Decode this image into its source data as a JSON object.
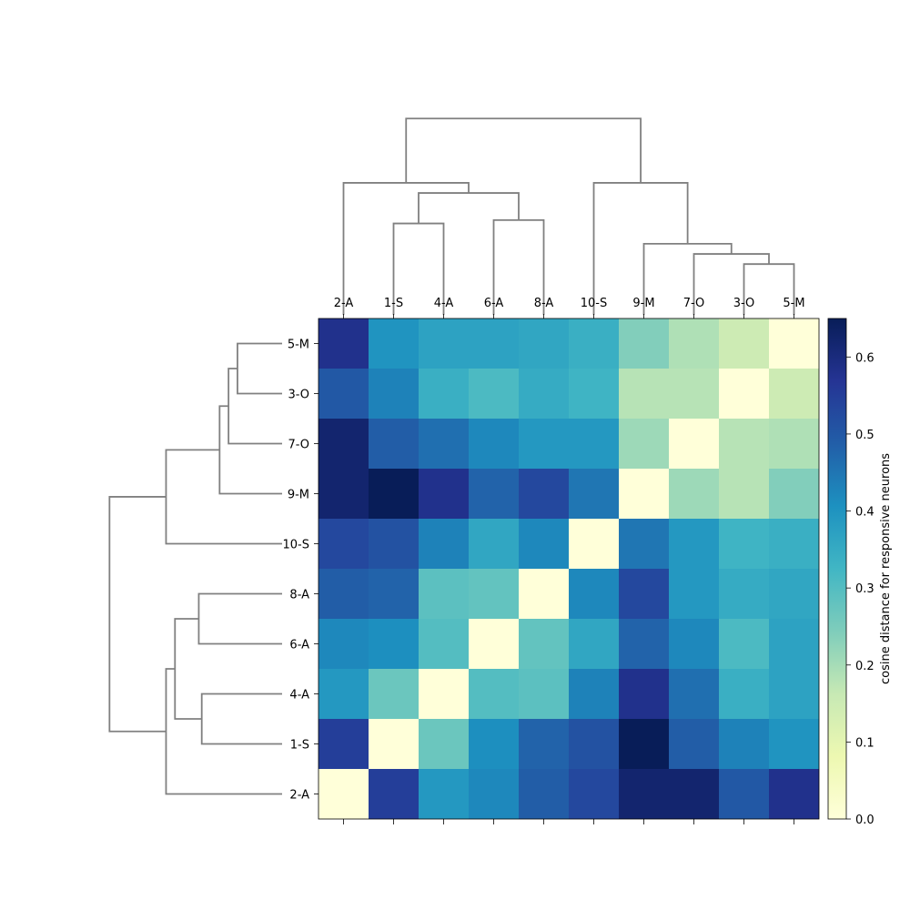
{
  "chart_data": {
    "type": "heatmap",
    "subtype": "clustermap",
    "title": "",
    "labels": [
      "2-A",
      "1-S",
      "4-A",
      "6-A",
      "8-A",
      "10-S",
      "9-M",
      "7-O",
      "3-O",
      "5-M"
    ],
    "column_order": [
      "2-A",
      "1-S",
      "4-A",
      "6-A",
      "8-A",
      "10-S",
      "9-M",
      "7-O",
      "3-O",
      "5-M"
    ],
    "row_order_top_to_bottom": [
      "5-M",
      "3-O",
      "7-O",
      "9-M",
      "10-S",
      "8-A",
      "6-A",
      "4-A",
      "1-S",
      "2-A"
    ],
    "matrix_label_order": [
      "2-A",
      "1-S",
      "4-A",
      "6-A",
      "8-A",
      "10-S",
      "9-M",
      "7-O",
      "3-O",
      "5-M"
    ],
    "matrix": [
      [
        0.0,
        0.55,
        0.39,
        0.42,
        0.49,
        0.53,
        0.62,
        0.62,
        0.5,
        0.58
      ],
      [
        0.55,
        0.0,
        0.27,
        0.41,
        0.48,
        0.51,
        0.65,
        0.49,
        0.43,
        0.4
      ],
      [
        0.39,
        0.27,
        0.0,
        0.3,
        0.29,
        0.43,
        0.58,
        0.46,
        0.34,
        0.37
      ],
      [
        0.42,
        0.41,
        0.3,
        0.0,
        0.28,
        0.36,
        0.48,
        0.42,
        0.31,
        0.37
      ],
      [
        0.49,
        0.48,
        0.29,
        0.28,
        0.0,
        0.42,
        0.53,
        0.39,
        0.35,
        0.36
      ],
      [
        0.53,
        0.51,
        0.43,
        0.36,
        0.42,
        0.0,
        0.45,
        0.39,
        0.33,
        0.34
      ],
      [
        0.62,
        0.65,
        0.58,
        0.48,
        0.53,
        0.45,
        0.0,
        0.21,
        0.18,
        0.24
      ],
      [
        0.62,
        0.49,
        0.46,
        0.42,
        0.39,
        0.39,
        0.21,
        0.0,
        0.18,
        0.19
      ],
      [
        0.5,
        0.43,
        0.34,
        0.31,
        0.35,
        0.33,
        0.18,
        0.18,
        0.0,
        0.15
      ],
      [
        0.58,
        0.4,
        0.37,
        0.37,
        0.36,
        0.34,
        0.24,
        0.19,
        0.15,
        0.0
      ]
    ],
    "colorbar": {
      "label": "cosine distance for responsive neurons",
      "min": 0,
      "max": 0.65,
      "ticks": [
        "0.0",
        "0.1",
        "0.2",
        "0.3",
        "0.4",
        "0.5",
        "0.6"
      ],
      "colormap": "YlGnBu",
      "stops": [
        "#ffffd9",
        "#edf8b1",
        "#c7e9b4",
        "#7fcdbb",
        "#41b6c4",
        "#1d91c0",
        "#225ea8",
        "#253494",
        "#081d58"
      ]
    },
    "dendrogram": {
      "color": "#808080",
      "linkage": [
        {
          "left": "3-O",
          "right": "5-M",
          "height": 0.15
        },
        {
          "left": "7-O",
          "right": [
            "3-O",
            "5-M"
          ],
          "height": 0.18
        },
        {
          "left": "9-M",
          "right": [
            "7-O",
            "3-O",
            "5-M"
          ],
          "height": 0.21
        },
        {
          "left": "10-S",
          "right": [
            "9-M",
            "7-O",
            "3-O",
            "5-M"
          ],
          "height": 0.39
        },
        {
          "left": "1-S",
          "right": "4-A",
          "height": 0.27
        },
        {
          "left": "6-A",
          "right": "8-A",
          "height": 0.28
        },
        {
          "left": [
            "1-S",
            "4-A"
          ],
          "right": [
            "6-A",
            "8-A"
          ],
          "height": 0.36
        },
        {
          "left": "2-A",
          "right": [
            "1-S",
            "4-A",
            "6-A",
            "8-A"
          ],
          "height": 0.39
        },
        {
          "left": [
            "2-A",
            "1-S",
            "4-A",
            "6-A",
            "8-A"
          ],
          "right": [
            "10-S",
            "9-M",
            "7-O",
            "3-O",
            "5-M"
          ],
          "height": 0.58
        }
      ]
    }
  }
}
